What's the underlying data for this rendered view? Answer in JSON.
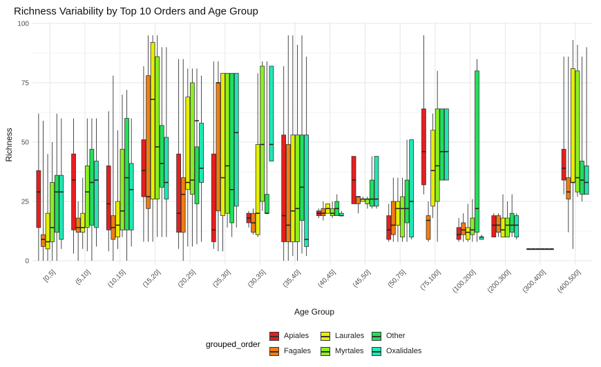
{
  "chart_data": {
    "type": "boxplot",
    "title": "Richness Variability by Top 10 Orders and Age Group",
    "xlabel": "Age Group",
    "ylabel": "Richness",
    "ylim": [
      0,
      100
    ],
    "yticks": [
      0,
      25,
      50,
      75,
      100
    ],
    "grid": true,
    "legend_title": "grouped_order",
    "legend_position": "bottom",
    "categories": [
      "[0,5]",
      "(5,10]",
      "(10,15]",
      "(15,20]",
      "(20,25]",
      "(25,30]",
      "(30,35]",
      "(35,40]",
      "(40,45]",
      "(45,50]",
      "(50,75]",
      "(75,100]",
      "(100,200]",
      "(200,300]",
      "(300,400]",
      "(400,500]"
    ],
    "series": [
      {
        "name": "Apiales",
        "color": "#E81E1E",
        "boxes": [
          [
            0,
            14,
            29,
            38,
            62
          ],
          [
            3,
            13,
            34,
            45,
            60
          ],
          [
            4,
            13,
            24,
            40,
            63
          ],
          [
            8,
            27,
            38,
            51,
            82
          ],
          [
            5,
            12,
            20,
            45,
            85
          ],
          [
            5,
            8,
            13,
            45,
            84
          ],
          [
            14,
            16,
            18,
            20,
            21
          ],
          [
            0,
            8,
            19,
            53,
            82
          ],
          [
            18,
            19,
            20,
            21,
            22
          ],
          [
            24,
            24,
            34,
            44,
            44
          ],
          [
            8,
            9,
            13,
            19,
            24
          ],
          [
            28,
            32,
            46,
            64,
            95
          ],
          [
            8,
            9,
            11,
            14,
            18
          ],
          [
            10,
            10,
            15,
            19,
            20
          ],
          [
            5,
            5,
            5,
            5,
            5
          ],
          [
            28,
            34,
            39,
            47,
            86
          ]
        ]
      },
      {
        "name": "Fagales",
        "color": "#F07D12",
        "boxes": [
          [
            0,
            6,
            9,
            11,
            59
          ],
          [
            0,
            12,
            14,
            18,
            25
          ],
          [
            0,
            9,
            14,
            19,
            78
          ],
          [
            8,
            22,
            27,
            78,
            95
          ],
          [
            0,
            12,
            28,
            35,
            85
          ],
          [
            4,
            21,
            75,
            75,
            84
          ],
          [
            11,
            12,
            16,
            20,
            22
          ],
          [
            0,
            8,
            15,
            49,
            95
          ],
          [
            17,
            19,
            20,
            22,
            25
          ],
          [
            20,
            24,
            27,
            27,
            27
          ],
          [
            8,
            11,
            15,
            25,
            35
          ],
          [
            8,
            9,
            17,
            19,
            25
          ],
          [
            8,
            11,
            13,
            16,
            20
          ],
          [
            10,
            12,
            15,
            19,
            20
          ],
          [
            5,
            5,
            5,
            5,
            5
          ],
          [
            12,
            26,
            29,
            35,
            86
          ]
        ]
      },
      {
        "name": "Laurales",
        "color": "#E6F000",
        "boxes": [
          [
            0,
            5,
            8,
            20,
            45
          ],
          [
            5,
            12,
            14,
            20,
            35
          ],
          [
            5,
            10,
            15,
            25,
            55
          ],
          [
            8,
            26,
            68,
            92,
            95
          ],
          [
            6,
            30,
            33,
            69,
            81
          ],
          [
            4,
            19,
            35,
            79,
            79
          ],
          [
            10,
            11,
            20,
            49,
            79
          ],
          [
            2,
            8,
            21,
            53,
            95
          ],
          [
            20,
            20,
            22,
            24,
            24
          ],
          [
            25,
            25,
            26,
            26,
            27
          ],
          [
            8,
            15,
            22,
            25,
            35
          ],
          [
            18,
            23,
            38,
            55,
            62
          ],
          [
            8,
            9,
            12,
            14,
            24
          ],
          [
            10,
            10,
            13,
            18,
            28
          ],
          [
            5,
            5,
            5,
            5,
            5
          ],
          [
            5,
            33,
            33,
            81,
            93
          ]
        ]
      },
      {
        "name": "Myrtales",
        "color": "#8CF020",
        "boxes": [
          [
            0,
            8,
            14,
            33,
            50
          ],
          [
            4,
            14,
            29,
            40,
            60
          ],
          [
            10,
            13,
            21,
            47,
            70
          ],
          [
            10,
            26,
            48,
            86,
            95
          ],
          [
            6,
            28,
            34,
            75,
            81
          ],
          [
            14,
            20,
            40,
            79,
            79
          ],
          [
            21,
            25,
            49,
            82,
            84
          ],
          [
            0,
            8,
            22,
            53,
            91
          ],
          [
            18,
            19,
            20,
            22,
            25
          ],
          [
            22,
            24,
            26,
            26,
            27
          ],
          [
            8,
            10,
            22,
            27,
            35
          ],
          [
            8,
            25,
            40,
            64,
            80
          ],
          [
            8,
            11,
            13,
            18,
            26
          ],
          [
            10,
            10,
            15,
            18,
            25
          ],
          [
            5,
            5,
            5,
            5,
            5
          ],
          [
            27,
            29,
            35,
            80,
            91
          ]
        ]
      },
      {
        "name": "Other",
        "color": "#1FE05A",
        "boxes": [
          [
            0,
            12,
            29,
            36,
            62
          ],
          [
            0,
            15,
            33,
            47,
            60
          ],
          [
            0,
            13,
            35,
            60,
            72
          ],
          [
            10,
            31,
            41,
            57,
            90
          ],
          [
            7,
            24,
            59,
            48,
            81
          ],
          [
            10,
            16,
            30,
            79,
            79
          ],
          [
            20,
            20,
            20,
            28,
            84
          ],
          [
            3,
            17,
            31,
            53,
            95
          ],
          [
            19,
            19,
            22,
            25,
            28
          ],
          [
            22,
            23,
            26,
            34,
            44
          ],
          [
            8,
            16,
            22,
            34,
            51
          ],
          [
            34,
            34,
            46,
            64,
            64
          ],
          [
            8,
            12,
            22,
            80,
            85
          ],
          [
            10,
            12,
            15,
            20,
            28
          ],
          [
            5,
            5,
            5,
            5,
            5
          ],
          [
            25,
            28,
            34,
            42,
            86
          ]
        ]
      },
      {
        "name": "Oxalidales",
        "color": "#1FE8B4",
        "boxes": [
          [
            5,
            9,
            29,
            36,
            60
          ],
          [
            6,
            14,
            34,
            42,
            60
          ],
          [
            6,
            13,
            30,
            41,
            60
          ],
          [
            10,
            26,
            33,
            52,
            90
          ],
          [
            8,
            33,
            39,
            58,
            78
          ],
          [
            14,
            23,
            54,
            79,
            79
          ],
          [
            42,
            42,
            49,
            82,
            82
          ],
          [
            2,
            6,
            9,
            53,
            86
          ],
          [
            19,
            19,
            19,
            20,
            21
          ],
          [
            22,
            23,
            26,
            44,
            44
          ],
          [
            9,
            10,
            25,
            51,
            51
          ],
          [
            34,
            34,
            46,
            64,
            64
          ],
          [
            9,
            9,
            10,
            10,
            11
          ],
          [
            9,
            10,
            15,
            19,
            20
          ],
          [
            5,
            5,
            5,
            5,
            5
          ],
          [
            28,
            28,
            33,
            40,
            90
          ]
        ]
      }
    ]
  }
}
